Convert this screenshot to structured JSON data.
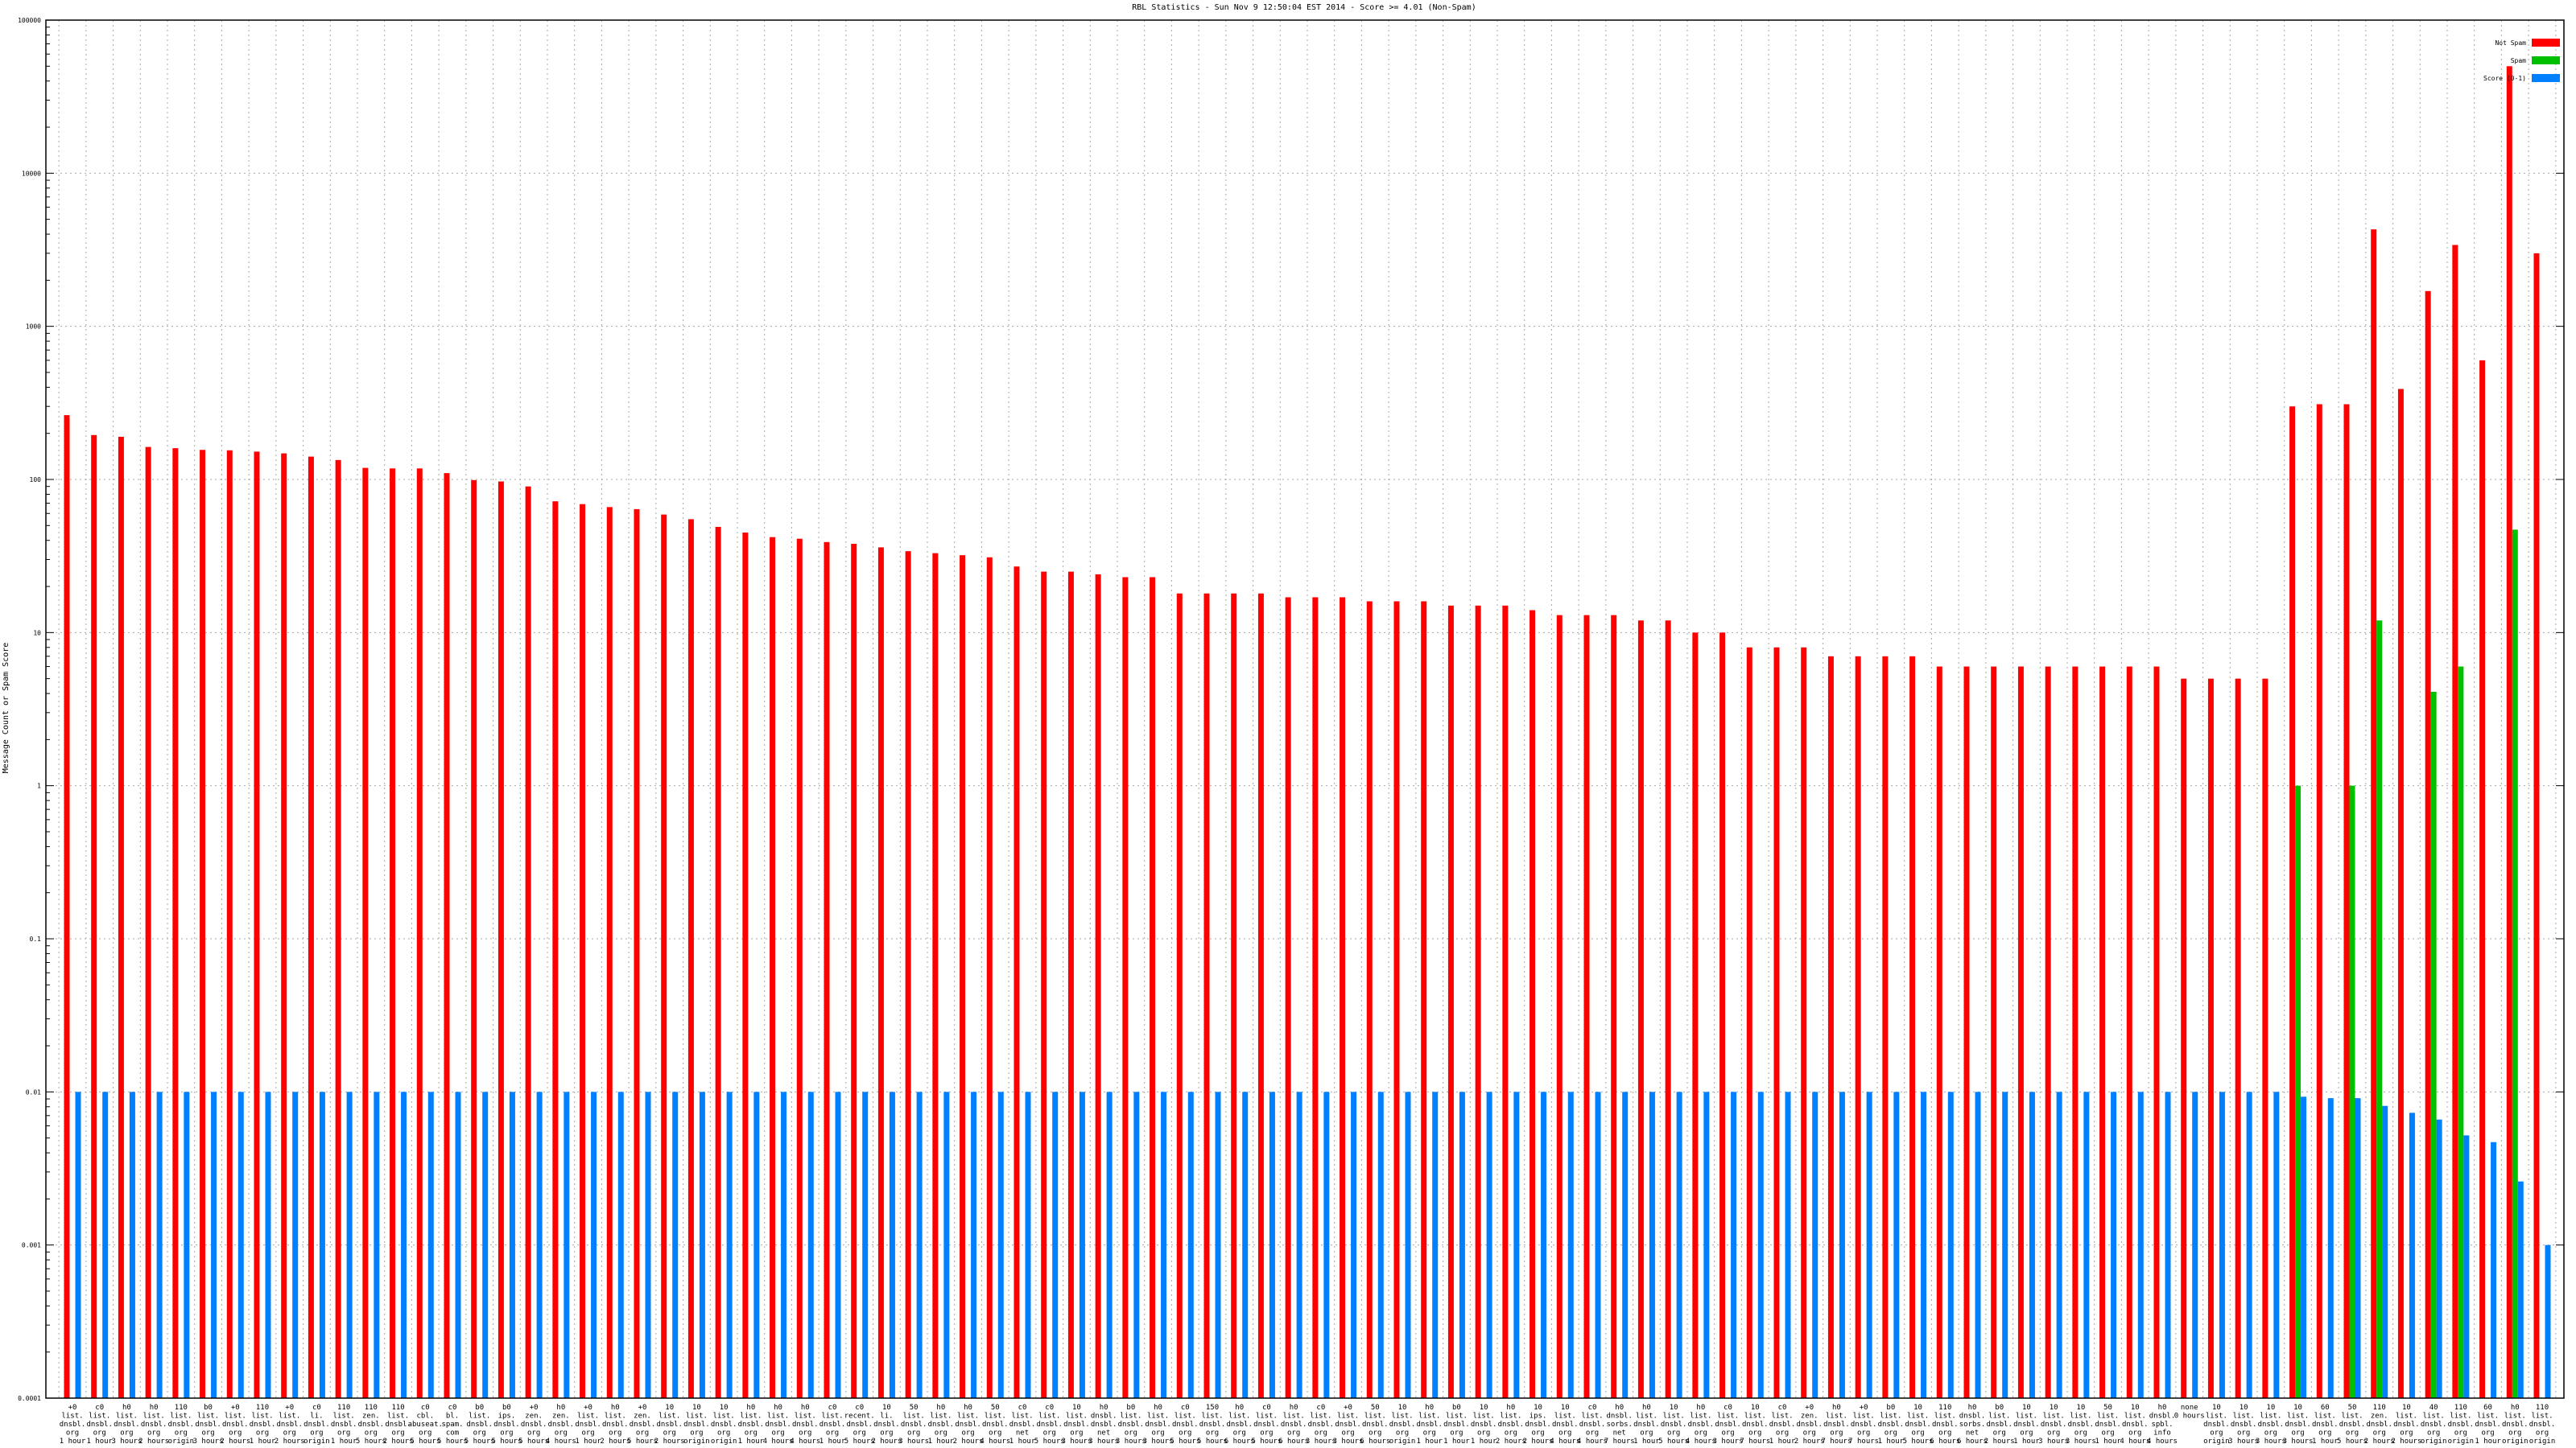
{
  "chart_data": {
    "type": "bar",
    "title": "RBL Statistics - Sun Nov  9 12:50:04 EST 2014 - Score >= 4.01 (Non-Spam)",
    "y_label": "Message Count or Spam Score",
    "log_scale": true,
    "grid": true,
    "legend": "top-right",
    "ylim": [
      0.0001,
      100000
    ],
    "yticks": [
      0.0001,
      0.001,
      0.01,
      0.1,
      1,
      10,
      100,
      1000,
      10000,
      100000
    ],
    "categories": [
      [
        "+0",
        "list.",
        "dnsbl.",
        "org",
        "1 hour"
      ],
      [
        "c0",
        "list.",
        "dnsbl.",
        "org",
        "1 hour"
      ],
      [
        "h0",
        "list.",
        "dnsbl.",
        "org",
        "3 hours"
      ],
      [
        "h0",
        "list.",
        "dnsbl.",
        "org",
        "2 hours"
      ],
      [
        "110",
        "list.",
        "dnsbl.",
        "org",
        "origin"
      ],
      [
        "b0",
        "list.",
        "dnsbl.",
        "org",
        "3 hours"
      ],
      [
        "+0",
        "list.",
        "dnsbl.",
        "org",
        "2 hours"
      ],
      [
        "110",
        "list.",
        "dnsbl.",
        "org",
        "1 hour"
      ],
      [
        "+0",
        "list.",
        "dnsbl.",
        "org",
        "2 hours"
      ],
      [
        "c0",
        "li.",
        "dnsbl.",
        "org",
        "origin"
      ],
      [
        "110",
        "list.",
        "dnsbl.",
        "org",
        "1 hour"
      ],
      [
        "110",
        "zen.",
        "dnsbl.",
        "org",
        "5 hours"
      ],
      [
        "110",
        "list.",
        "dnsbl.",
        "org",
        "2 hours"
      ],
      [
        "c0",
        "cbl.",
        "abuseat.",
        "org",
        "5 hours"
      ],
      [
        "c0",
        "bl.",
        "spam.",
        "com",
        "5 hours"
      ],
      [
        "b0",
        "list.",
        "dnsbl.",
        "org",
        "5 hours"
      ],
      [
        "b0",
        "ips.",
        "dnsbl.",
        "org",
        "5 hours"
      ],
      [
        "+0",
        "zen.",
        "dnsbl.",
        "org",
        "5 hours"
      ],
      [
        "h0",
        "zen.",
        "dnsbl.",
        "org",
        "4 hours"
      ],
      [
        "+0",
        "list.",
        "dnsbl.",
        "org",
        "1 hour"
      ],
      [
        "h0",
        "list.",
        "dnsbl.",
        "org",
        "2 hours"
      ],
      [
        "+0",
        "zen.",
        "dnsbl.",
        "org",
        "5 hours"
      ],
      [
        "10",
        "list.",
        "dnsbl.",
        "org",
        "2 hours"
      ],
      [
        "10",
        "list.",
        "dnsbl.",
        "org",
        "origin"
      ],
      [
        "10",
        "list.",
        "dnsbl.",
        "org",
        "origin"
      ],
      [
        "h0",
        "list.",
        "dnsbl.",
        "org",
        "1 hour"
      ],
      [
        "h0",
        "list.",
        "dnsbl.",
        "org",
        "4 hours"
      ],
      [
        "h0",
        "list.",
        "dnsbl.",
        "org",
        "4 hours"
      ],
      [
        "c0",
        "list.",
        "dnsbl.",
        "org",
        "1 hour"
      ],
      [
        "c0",
        "recent.",
        "dnsbl.",
        "org",
        "5 hours"
      ],
      [
        "10",
        "li.",
        "dnsbl.",
        "org",
        "2 hours"
      ],
      [
        "50",
        "list.",
        "dnsbl.",
        "org",
        "3 hours"
      ],
      [
        "h0",
        "list.",
        "dnsbl.",
        "org",
        "1 hour"
      ],
      [
        "h0",
        "list.",
        "dnsbl.",
        "org",
        "2 hours"
      ],
      [
        "50",
        "list.",
        "dnsbl.",
        "org",
        "4 hours"
      ],
      [
        "c0",
        "list.",
        "dnsbl.",
        "net",
        "1 hour"
      ],
      [
        "c0",
        "list.",
        "dnsbl.",
        "org",
        "5 hours"
      ],
      [
        "10",
        "list.",
        "dnsbl.",
        "org",
        "3 hours"
      ],
      [
        "h0",
        "dnsbl.",
        "dnsbl.",
        "net",
        "3 hours"
      ],
      [
        "b0",
        "list.",
        "dnsbl.",
        "org",
        "3 hours"
      ],
      [
        "h0",
        "list.",
        "dnsbl.",
        "org",
        "3 hours"
      ],
      [
        "c0",
        "list.",
        "dnsbl.",
        "org",
        "5 hours"
      ],
      [
        "150",
        "list.",
        "dnsbl.",
        "org",
        "5 hours"
      ],
      [
        "h0",
        "list.",
        "dnsbl.",
        "org",
        "6 hours"
      ],
      [
        "c0",
        "list.",
        "dnsbl.",
        "org",
        "5 hours"
      ],
      [
        "h0",
        "list.",
        "dnsbl.",
        "org",
        "6 hours"
      ],
      [
        "c0",
        "list.",
        "dnsbl.",
        "org",
        "3 hours"
      ],
      [
        "+0",
        "list.",
        "dnsbl.",
        "org",
        "3 hours"
      ],
      [
        "50",
        "list.",
        "dnsbl.",
        "org",
        "6 hours"
      ],
      [
        "10",
        "list.",
        "dnsbl.",
        "org",
        "origin"
      ],
      [
        "h0",
        "list.",
        "dnsbl.",
        "org",
        "1 hour"
      ],
      [
        "b0",
        "list.",
        "dnsbl.",
        "org",
        "1 hour"
      ],
      [
        "10",
        "list.",
        "dnsbl.",
        "org",
        "1 hour"
      ],
      [
        "h0",
        "list.",
        "dnsbl.",
        "org",
        "2 hours"
      ],
      [
        "10",
        "ips.",
        "dnsbl.",
        "org",
        "2 hours"
      ],
      [
        "10",
        "list.",
        "dnsbl.",
        "org",
        "4 hours"
      ],
      [
        "c0",
        "list.",
        "dnsbl.",
        "org",
        "4 hours"
      ],
      [
        "h0",
        "dnsbl.",
        "sorbs.",
        "net",
        "7 hours"
      ],
      [
        "h0",
        "list.",
        "dnsbl.",
        "org",
        "1 hour"
      ],
      [
        "10",
        "list.",
        "dnsbl.",
        "org",
        "5 hours"
      ],
      [
        "h0",
        "list.",
        "dnsbl.",
        "org",
        "4 hours"
      ],
      [
        "c0",
        "list.",
        "dnsbl.",
        "org",
        "3 hours"
      ],
      [
        "10",
        "list.",
        "dnsbl.",
        "org",
        "7 hours"
      ],
      [
        "c0",
        "list.",
        "dnsbl.",
        "org",
        "1 hour"
      ],
      [
        "+0",
        "zen.",
        "dnsbl.",
        "org",
        "2 hours"
      ],
      [
        "h0",
        "list.",
        "dnsbl.",
        "org",
        "7 hours"
      ],
      [
        "+0",
        "list.",
        "dnsbl.",
        "org",
        "7 hours"
      ],
      [
        "b0",
        "list.",
        "dnsbl.",
        "org",
        "1 hour"
      ],
      [
        "10",
        "list.",
        "dnsbl.",
        "org",
        "5 hours"
      ],
      [
        "110",
        "list.",
        "dnsbl.",
        "org",
        "6 hours"
      ],
      [
        "h0",
        "dnsbl.",
        "sorbs.",
        "net",
        "6 hours"
      ],
      [
        "b0",
        "list.",
        "dnsbl.",
        "org",
        "2 hours"
      ],
      [
        "10",
        "list.",
        "dnsbl.",
        "org",
        "1 hour"
      ],
      [
        "10",
        "list.",
        "dnsbl.",
        "org",
        "3 hours"
      ],
      [
        "10",
        "list.",
        "dnsbl.",
        "org",
        "3 hours"
      ],
      [
        "50",
        "list.",
        "dnsbl.",
        "org",
        "1 hour"
      ],
      [
        "10",
        "list.",
        "dnsbl.",
        "org",
        "4 hours"
      ],
      [
        "h0",
        "dnsbl.",
        "spbl.",
        "info",
        "4 hours"
      ],
      [
        "none",
        "0 hours"
      ],
      [
        "10",
        "list.",
        "dnsbl.",
        "org",
        "origin"
      ],
      [
        "10",
        "list.",
        "dnsbl.",
        "org",
        "3 hours"
      ],
      [
        "10",
        "list.",
        "dnsbl.",
        "org",
        "3 hours"
      ],
      [
        "10",
        "list.",
        "dnsbl.",
        "org",
        "3 hours"
      ],
      [
        "60",
        "list.",
        "dnsbl.",
        "org",
        "1 hour"
      ],
      [
        "50",
        "list.",
        "dnsbl.",
        "org",
        "5 hours"
      ],
      [
        "110",
        "zen.",
        "dnsbl.",
        "org",
        "2 hours"
      ],
      [
        "10",
        "list.",
        "dnsbl.",
        "org",
        "2 hours"
      ],
      [
        "40",
        "list.",
        "dnsbl.",
        "org",
        "origin"
      ],
      [
        "110",
        "list.",
        "dnsbl.",
        "org",
        "origin"
      ],
      [
        "60",
        "list.",
        "dnsbl.",
        "org",
        "1 hour"
      ],
      [
        "h0",
        "list.",
        "dnsbl.",
        "org",
        "origin"
      ],
      [
        "110",
        "list.",
        "dnsbl.",
        "org",
        "origin"
      ]
    ],
    "series": [
      {
        "name": "Not Spam",
        "color": "#ff0000",
        "values": [
          263,
          195,
          190,
          163,
          160,
          156,
          155,
          152,
          148,
          141,
          134,
          119,
          118,
          118,
          110,
          99,
          97,
          90,
          72,
          69,
          66,
          64,
          59,
          55,
          49,
          45,
          42,
          41,
          39,
          38,
          36,
          34,
          33,
          32,
          31,
          27,
          25,
          25,
          24,
          23,
          23,
          18,
          18,
          18,
          18,
          17,
          17,
          17,
          16,
          16,
          16,
          15,
          15,
          15,
          14,
          13,
          13,
          13,
          12,
          12,
          10,
          10,
          8,
          8,
          8,
          7,
          7,
          7,
          7,
          6,
          6,
          6,
          6,
          6,
          6,
          6,
          6,
          6,
          5,
          5,
          5,
          5,
          300,
          310,
          310,
          4300,
          390,
          1700,
          3400,
          600,
          50000,
          3000
        ]
      },
      {
        "name": "Spam",
        "color": "#00c000",
        "values": [
          null,
          null,
          null,
          null,
          null,
          null,
          null,
          null,
          null,
          null,
          null,
          null,
          null,
          null,
          null,
          null,
          null,
          null,
          null,
          null,
          null,
          null,
          null,
          null,
          null,
          null,
          null,
          null,
          null,
          null,
          null,
          null,
          null,
          null,
          null,
          null,
          null,
          null,
          null,
          null,
          null,
          null,
          null,
          null,
          null,
          null,
          null,
          null,
          null,
          null,
          null,
          null,
          null,
          null,
          null,
          null,
          null,
          null,
          null,
          null,
          null,
          null,
          null,
          null,
          null,
          null,
          null,
          null,
          null,
          null,
          null,
          null,
          null,
          null,
          null,
          null,
          null,
          null,
          null,
          null,
          null,
          null,
          1,
          null,
          1,
          12,
          null,
          4.1,
          6,
          null,
          47,
          null
        ]
      },
      {
        "name": "Score (0-1)",
        "color": "#0080ff",
        "values": [
          0.01,
          0.01,
          0.01,
          0.01,
          0.01,
          0.01,
          0.01,
          0.01,
          0.01,
          0.01,
          0.01,
          0.01,
          0.01,
          0.01,
          0.01,
          0.01,
          0.01,
          0.01,
          0.01,
          0.01,
          0.01,
          0.01,
          0.01,
          0.01,
          0.01,
          0.01,
          0.01,
          0.01,
          0.01,
          0.01,
          0.01,
          0.01,
          0.01,
          0.01,
          0.01,
          0.01,
          0.01,
          0.01,
          0.01,
          0.01,
          0.01,
          0.01,
          0.01,
          0.01,
          0.01,
          0.01,
          0.01,
          0.01,
          0.01,
          0.01,
          0.01,
          0.01,
          0.01,
          0.01,
          0.01,
          0.01,
          0.01,
          0.01,
          0.01,
          0.01,
          0.01,
          0.01,
          0.01,
          0.01,
          0.01,
          0.01,
          0.01,
          0.01,
          0.01,
          0.01,
          0.01,
          0.01,
          0.01,
          0.01,
          0.01,
          0.01,
          0.01,
          0.01,
          0.01,
          0.01,
          0.01,
          0.01,
          0.0093,
          0.0091,
          0.0091,
          0.0081,
          0.0073,
          0.0066,
          0.0052,
          0.0047,
          0.0026,
          0.001
        ]
      }
    ]
  }
}
